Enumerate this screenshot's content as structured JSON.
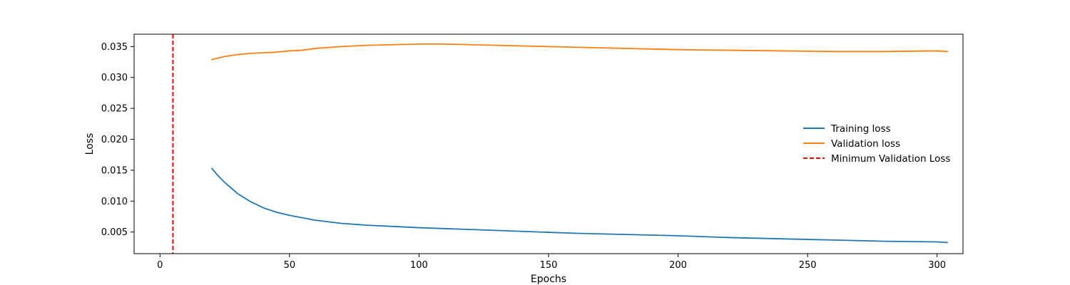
{
  "chart_data": {
    "type": "line",
    "xlabel": "Epochs",
    "ylabel": "Loss",
    "xlim": [
      -10,
      310
    ],
    "ylim": [
      0.0015,
      0.037
    ],
    "xticks": [
      0,
      50,
      100,
      150,
      200,
      250,
      300
    ],
    "yticks": [
      0.005,
      0.01,
      0.015,
      0.02,
      0.025,
      0.03,
      0.035
    ],
    "ytick_labels": [
      "0.005",
      "0.010",
      "0.015",
      "0.020",
      "0.025",
      "0.030",
      "0.035"
    ],
    "grid": false,
    "legend_position": "center-right",
    "series": [
      {
        "name": "Training loss",
        "color": "#1f77b4",
        "x": [
          20,
          22,
          25,
          30,
          35,
          40,
          45,
          50,
          60,
          70,
          80,
          90,
          100,
          120,
          140,
          160,
          180,
          200,
          220,
          240,
          260,
          280,
          300,
          304
        ],
        "y": [
          0.0153,
          0.0143,
          0.013,
          0.0112,
          0.0099,
          0.0089,
          0.0082,
          0.0077,
          0.0069,
          0.0064,
          0.0061,
          0.0059,
          0.0057,
          0.0054,
          0.0051,
          0.0048,
          0.0046,
          0.0044,
          0.0041,
          0.0039,
          0.0037,
          0.0035,
          0.0034,
          0.0033
        ]
      },
      {
        "name": "Validation loss",
        "color": "#ff7f0e",
        "x": [
          20,
          25,
          30,
          35,
          40,
          45,
          50,
          55,
          60,
          70,
          80,
          90,
          100,
          110,
          120,
          130,
          140,
          150,
          160,
          170,
          180,
          190,
          200,
          220,
          240,
          260,
          280,
          300,
          304
        ],
        "y": [
          0.0329,
          0.0334,
          0.0337,
          0.0339,
          0.034,
          0.0341,
          0.0343,
          0.0344,
          0.0347,
          0.035,
          0.0352,
          0.0353,
          0.0354,
          0.0354,
          0.0353,
          0.0352,
          0.0351,
          0.035,
          0.0349,
          0.0348,
          0.0347,
          0.0346,
          0.0345,
          0.0344,
          0.0343,
          0.0342,
          0.0342,
          0.0343,
          0.0342
        ]
      },
      {
        "name": "Minimum Validation Loss",
        "color": "#ff0000",
        "style": "dashed",
        "vline_x": 5
      }
    ]
  }
}
